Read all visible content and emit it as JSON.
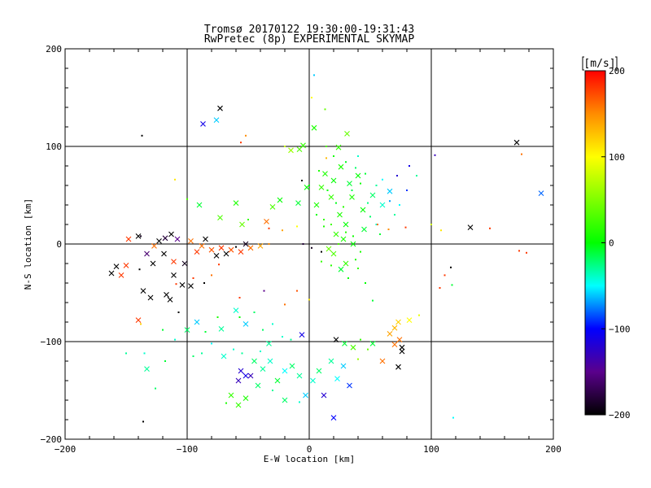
{
  "chart_data": {
    "type": "scatter",
    "title_line1": "Tromsø 20170122 19:30:00-19:31:43",
    "title_line2": "RwPretec (8p) EXPERIMENTAL SKYMAP",
    "xlabel": "E-W location [km]",
    "ylabel": "N-S location [km]",
    "xlim": [
      -200,
      200
    ],
    "ylim": [
      -200,
      200
    ],
    "xticks": [
      -200,
      -100,
      0,
      100,
      200
    ],
    "yticks": [
      -200,
      -100,
      0,
      100,
      200
    ],
    "grid_lines": [
      -100,
      0,
      100
    ],
    "colorbar": {
      "unit": "[m/s]",
      "range": [
        -200,
        200
      ],
      "ticks": [
        200,
        100,
        0,
        -100,
        -200
      ]
    },
    "markers": {
      "large": "cross (×)",
      "small": "dot"
    },
    "points_sampled_note_free": true,
    "points": [
      [
        -73,
        139,
        -200,
        "x"
      ],
      [
        -87,
        123,
        -110,
        "x"
      ],
      [
        -76,
        127,
        -60,
        "x"
      ],
      [
        -137,
        111,
        -200,
        "d"
      ],
      [
        -52,
        111,
        150,
        "d"
      ],
      [
        -56,
        104,
        180,
        "d"
      ],
      [
        4,
        173,
        -60,
        "d"
      ],
      [
        2,
        150,
        100,
        "d"
      ],
      [
        170,
        104,
        -200,
        "x"
      ],
      [
        174,
        92,
        160,
        "d"
      ],
      [
        190,
        52,
        -80,
        "x"
      ],
      [
        103,
        91,
        -130,
        "d"
      ],
      [
        13,
        138,
        40,
        "d"
      ],
      [
        -110,
        66,
        110,
        "d"
      ],
      [
        -90,
        40,
        -10,
        "x"
      ],
      [
        -100,
        46,
        30,
        "d"
      ],
      [
        -73,
        27,
        30,
        "x"
      ],
      [
        -60,
        42,
        10,
        "x"
      ],
      [
        -55,
        20,
        40,
        "x"
      ],
      [
        -50,
        25,
        20,
        "d"
      ],
      [
        -30,
        38,
        30,
        "x"
      ],
      [
        -24,
        45,
        0,
        "x"
      ],
      [
        -9,
        42,
        -10,
        "x"
      ],
      [
        -6,
        65,
        -200,
        "d"
      ],
      [
        -2,
        58,
        0,
        "x"
      ],
      [
        6,
        40,
        10,
        "x"
      ],
      [
        10,
        58,
        20,
        "x"
      ],
      [
        13,
        72,
        10,
        "x"
      ],
      [
        20,
        65,
        0,
        "x"
      ],
      [
        26,
        79,
        10,
        "x"
      ],
      [
        33,
        62,
        -10,
        "x"
      ],
      [
        40,
        70,
        0,
        "x"
      ],
      [
        18,
        48,
        20,
        "x"
      ],
      [
        35,
        48,
        10,
        "x"
      ],
      [
        44,
        35,
        0,
        "x"
      ],
      [
        52,
        50,
        -20,
        "x"
      ],
      [
        60,
        40,
        -40,
        "x"
      ],
      [
        66,
        54,
        -60,
        "x"
      ],
      [
        74,
        40,
        -50,
        "d"
      ],
      [
        80,
        55,
        -90,
        "d"
      ],
      [
        88,
        70,
        -30,
        "d"
      ],
      [
        72,
        70,
        -120,
        "d"
      ],
      [
        82,
        80,
        -110,
        "d"
      ],
      [
        40,
        90,
        -40,
        "d"
      ],
      [
        24,
        99,
        20,
        "x"
      ],
      [
        31,
        113,
        40,
        "x"
      ],
      [
        4,
        119,
        10,
        "x"
      ],
      [
        -8,
        97,
        30,
        "x"
      ],
      [
        -15,
        96,
        60,
        "x"
      ],
      [
        -20,
        100,
        80,
        "d"
      ],
      [
        -5,
        101,
        20,
        "x"
      ],
      [
        14,
        88,
        130,
        "d"
      ],
      [
        25,
        30,
        10,
        "x"
      ],
      [
        30,
        20,
        0,
        "x"
      ],
      [
        22,
        10,
        20,
        "x"
      ],
      [
        28,
        5,
        10,
        "x"
      ],
      [
        36,
        0,
        0,
        "x"
      ],
      [
        20,
        -10,
        30,
        "x"
      ],
      [
        30,
        -20,
        20,
        "x"
      ],
      [
        38,
        -16,
        10,
        "d"
      ],
      [
        16,
        -5,
        40,
        "x"
      ],
      [
        45,
        15,
        -10,
        "x"
      ],
      [
        55,
        20,
        -40,
        "d"
      ],
      [
        65,
        15,
        150,
        "d"
      ],
      [
        12,
        25,
        20,
        "d"
      ],
      [
        26,
        -26,
        -10,
        "x"
      ],
      [
        32,
        -35,
        0,
        "d"
      ],
      [
        40,
        -25,
        20,
        "d"
      ],
      [
        0,
        60,
        5,
        "d"
      ],
      [
        8,
        75,
        10,
        "d"
      ],
      [
        15,
        55,
        0,
        "d"
      ],
      [
        22,
        42,
        -5,
        "d"
      ],
      [
        28,
        38,
        15,
        "d"
      ],
      [
        35,
        55,
        -15,
        "d"
      ],
      [
        42,
        62,
        5,
        "d"
      ],
      [
        48,
        42,
        -25,
        "d"
      ],
      [
        55,
        60,
        -30,
        "d"
      ],
      [
        6,
        30,
        0,
        "d"
      ],
      [
        12,
        18,
        10,
        "d"
      ],
      [
        18,
        20,
        25,
        "d"
      ],
      [
        24,
        0,
        30,
        "d"
      ],
      [
        30,
        12,
        15,
        "d"
      ],
      [
        36,
        8,
        5,
        "d"
      ],
      [
        42,
        -8,
        10,
        "d"
      ],
      [
        10,
        -18,
        20,
        "d"
      ],
      [
        18,
        -22,
        15,
        "d"
      ],
      [
        14,
        100,
        30,
        "d"
      ],
      [
        20,
        90,
        5,
        "d"
      ],
      [
        30,
        84,
        -5,
        "d"
      ],
      [
        38,
        78,
        -20,
        "d"
      ],
      [
        46,
        72,
        -10,
        "d"
      ],
      [
        60,
        66,
        -50,
        "d"
      ],
      [
        66,
        44,
        -70,
        "d"
      ],
      [
        70,
        30,
        -30,
        "d"
      ],
      [
        50,
        28,
        -20,
        "d"
      ],
      [
        58,
        10,
        -10,
        "d"
      ],
      [
        -35,
        23,
        160,
        "x"
      ],
      [
        -33,
        16,
        180,
        "d"
      ],
      [
        -22,
        14,
        140,
        "d"
      ],
      [
        -10,
        18,
        100,
        "d"
      ],
      [
        -148,
        5,
        180,
        "x"
      ],
      [
        -140,
        8,
        -200,
        "x"
      ],
      [
        -138,
        8,
        -190,
        "d"
      ],
      [
        -123,
        3,
        -200,
        "x"
      ],
      [
        -118,
        6,
        -180,
        "x"
      ],
      [
        -113,
        10,
        -200,
        "x"
      ],
      [
        -108,
        5,
        -150,
        "x"
      ],
      [
        -97,
        3,
        160,
        "x"
      ],
      [
        -88,
        -2,
        160,
        "x"
      ],
      [
        -80,
        -6,
        170,
        "x"
      ],
      [
        -72,
        -4,
        180,
        "x"
      ],
      [
        -64,
        -6,
        170,
        "x"
      ],
      [
        -56,
        -8,
        180,
        "x"
      ],
      [
        -48,
        -4,
        160,
        "x"
      ],
      [
        -40,
        -2,
        140,
        "x"
      ],
      [
        -33,
        0,
        150,
        "d"
      ],
      [
        -76,
        -12,
        -200,
        "x"
      ],
      [
        -68,
        -10,
        -200,
        "x"
      ],
      [
        -60,
        -3,
        -200,
        "d"
      ],
      [
        -52,
        0,
        -190,
        "x"
      ],
      [
        -85,
        5,
        -200,
        "x"
      ],
      [
        -92,
        -8,
        180,
        "x"
      ],
      [
        -102,
        -20,
        -190,
        "x"
      ],
      [
        -111,
        -18,
        180,
        "x"
      ],
      [
        -119,
        -10,
        -200,
        "x"
      ],
      [
        -127,
        -2,
        160,
        "x"
      ],
      [
        -133,
        -10,
        -160,
        "x"
      ],
      [
        -128,
        -20,
        -200,
        "x"
      ],
      [
        -150,
        -22,
        180,
        "x"
      ],
      [
        -158,
        -23,
        -200,
        "x"
      ],
      [
        -162,
        -30,
        -200,
        "x"
      ],
      [
        -154,
        -32,
        180,
        "x"
      ],
      [
        -139,
        -26,
        -200,
        "d"
      ],
      [
        -136,
        -48,
        -200,
        "x"
      ],
      [
        -130,
        -55,
        -200,
        "x"
      ],
      [
        -117,
        -52,
        -200,
        "x"
      ],
      [
        -111,
        -32,
        -200,
        "x"
      ],
      [
        -104,
        -42,
        -200,
        "x"
      ],
      [
        -97,
        -43,
        -200,
        "x"
      ],
      [
        -86,
        -40,
        -200,
        "d"
      ],
      [
        -95,
        -35,
        180,
        "d"
      ],
      [
        -80,
        -32,
        160,
        "d"
      ],
      [
        -74,
        -21,
        180,
        "d"
      ],
      [
        -109,
        -41,
        180,
        "d"
      ],
      [
        -114,
        -57,
        -200,
        "x"
      ],
      [
        -107,
        -70,
        -200,
        "d"
      ],
      [
        -140,
        -78,
        180,
        "x"
      ],
      [
        -138,
        -82,
        120,
        "d"
      ],
      [
        -120,
        -88,
        -10,
        "d"
      ],
      [
        -110,
        -98,
        -40,
        "d"
      ],
      [
        -100,
        -88,
        -20,
        "x"
      ],
      [
        -92,
        -80,
        -60,
        "x"
      ],
      [
        -85,
        -90,
        -10,
        "d"
      ],
      [
        -75,
        -75,
        10,
        "d"
      ],
      [
        -72,
        -87,
        -30,
        "x"
      ],
      [
        -60,
        -68,
        -40,
        "x"
      ],
      [
        -57,
        -75,
        0,
        "d"
      ],
      [
        -52,
        -82,
        -60,
        "x"
      ],
      [
        -45,
        -70,
        -20,
        "d"
      ],
      [
        -38,
        -88,
        -20,
        "d"
      ],
      [
        -30,
        -82,
        -40,
        "d"
      ],
      [
        -22,
        -95,
        -40,
        "d"
      ],
      [
        -15,
        -98,
        -30,
        "d"
      ],
      [
        -6,
        -93,
        -110,
        "x"
      ],
      [
        -33,
        -102,
        -30,
        "x"
      ],
      [
        -40,
        -110,
        -40,
        "d"
      ],
      [
        -45,
        -120,
        -20,
        "x"
      ],
      [
        -55,
        -112,
        -30,
        "d"
      ],
      [
        -62,
        -108,
        -40,
        "d"
      ],
      [
        -70,
        -115,
        -40,
        "x"
      ],
      [
        -80,
        -102,
        -50,
        "d"
      ],
      [
        -88,
        -112,
        -30,
        "d"
      ],
      [
        -95,
        -115,
        -20,
        "d"
      ],
      [
        -118,
        -120,
        -10,
        "d"
      ],
      [
        -135,
        -112,
        -40,
        "d"
      ],
      [
        -150,
        -112,
        -30,
        "d"
      ],
      [
        -133,
        -128,
        -30,
        "x"
      ],
      [
        -126,
        -148,
        -20,
        "d"
      ],
      [
        -56,
        -130,
        -120,
        "x"
      ],
      [
        -52,
        -135,
        -110,
        "x"
      ],
      [
        -48,
        -135,
        -130,
        "x"
      ],
      [
        -58,
        -140,
        -130,
        "x"
      ],
      [
        -42,
        -145,
        -20,
        "x"
      ],
      [
        -38,
        -128,
        -30,
        "x"
      ],
      [
        -32,
        -120,
        -40,
        "x"
      ],
      [
        -26,
        -140,
        -10,
        "x"
      ],
      [
        -20,
        -130,
        -50,
        "x"
      ],
      [
        -14,
        -125,
        -20,
        "x"
      ],
      [
        -8,
        -135,
        -30,
        "x"
      ],
      [
        -3,
        -155,
        -60,
        "x"
      ],
      [
        3,
        -140,
        -40,
        "x"
      ],
      [
        8,
        -130,
        -20,
        "x"
      ],
      [
        12,
        -155,
        -120,
        "x"
      ],
      [
        18,
        -120,
        -30,
        "x"
      ],
      [
        23,
        -138,
        -50,
        "x"
      ],
      [
        28,
        -125,
        -60,
        "x"
      ],
      [
        33,
        -145,
        -90,
        "x"
      ],
      [
        22,
        -98,
        -200,
        "x"
      ],
      [
        29,
        -102,
        -10,
        "x"
      ],
      [
        36,
        -106,
        30,
        "x"
      ],
      [
        42,
        -98,
        20,
        "d"
      ],
      [
        48,
        -108,
        40,
        "d"
      ],
      [
        52,
        -102,
        -10,
        "x"
      ],
      [
        40,
        -118,
        60,
        "d"
      ],
      [
        -64,
        -155,
        20,
        "x"
      ],
      [
        -58,
        -165,
        20,
        "x"
      ],
      [
        -52,
        -158,
        10,
        "x"
      ],
      [
        -68,
        -163,
        10,
        "d"
      ],
      [
        -30,
        -150,
        -30,
        "d"
      ],
      [
        -20,
        -160,
        -20,
        "x"
      ],
      [
        -8,
        -162,
        -40,
        "d"
      ],
      [
        20,
        -178,
        -100,
        "x"
      ],
      [
        -136,
        -182,
        -200,
        "d"
      ],
      [
        118,
        -178,
        -50,
        "d"
      ],
      [
        60,
        -120,
        160,
        "x"
      ],
      [
        70,
        -103,
        160,
        "x"
      ],
      [
        74,
        -98,
        160,
        "x"
      ],
      [
        66,
        -92,
        140,
        "x"
      ],
      [
        70,
        -86,
        130,
        "x"
      ],
      [
        73,
        -80,
        120,
        "x"
      ],
      [
        82,
        -78,
        100,
        "x"
      ],
      [
        90,
        -73,
        90,
        "d"
      ],
      [
        73,
        -126,
        -200,
        "x"
      ],
      [
        76,
        -106,
        -200,
        "x"
      ],
      [
        76,
        -110,
        -200,
        "x"
      ],
      [
        132,
        17,
        -200,
        "x"
      ],
      [
        148,
        16,
        180,
        "d"
      ],
      [
        178,
        -9,
        180,
        "d"
      ],
      [
        172,
        -7,
        180,
        "d"
      ],
      [
        116,
        -24,
        -200,
        "d"
      ],
      [
        111,
        -32,
        180,
        "d"
      ],
      [
        107,
        -45,
        180,
        "d"
      ],
      [
        117,
        -42,
        -10,
        "d"
      ],
      [
        100,
        20,
        80,
        "d"
      ],
      [
        108,
        14,
        110,
        "d"
      ],
      [
        79,
        17,
        180,
        "d"
      ],
      [
        56,
        20,
        160,
        "d"
      ],
      [
        46,
        -40,
        0,
        "d"
      ],
      [
        52,
        -58,
        -10,
        "d"
      ],
      [
        0,
        -57,
        110,
        "d"
      ],
      [
        -10,
        -48,
        170,
        "d"
      ],
      [
        -20,
        -62,
        160,
        "d"
      ],
      [
        -57,
        -55,
        180,
        "d"
      ],
      [
        -37,
        -48,
        -150,
        "d"
      ],
      [
        10,
        -8,
        -200,
        "d"
      ],
      [
        2,
        -4,
        -190,
        "d"
      ],
      [
        -5,
        0,
        -180,
        "d"
      ]
    ]
  }
}
